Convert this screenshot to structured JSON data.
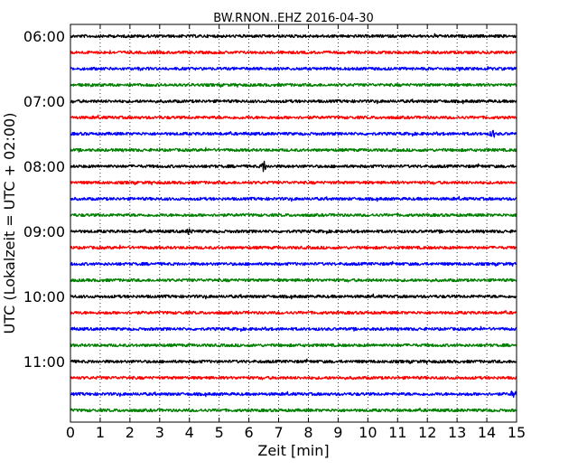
{
  "chart_data": {
    "type": "line",
    "title": "BW.RNON..EHZ 2016-04-30",
    "xlabel": "Zeit  [min]",
    "ylabel": "UTC (Lokalzeit = UTC + 02:00)",
    "xlim": [
      0,
      15
    ],
    "x_ticks": [
      "0",
      "1",
      "2",
      "3",
      "4",
      "5",
      "6",
      "7",
      "8",
      "9",
      "10",
      "11",
      "12",
      "13",
      "14",
      "15"
    ],
    "y_tick_labels": [
      "06:00",
      "07:00",
      "08:00",
      "09:00",
      "10:00",
      "11:00"
    ],
    "grid": "vertical dotted at each minute",
    "trace_interval_minutes": 15,
    "trace_start": "06:00",
    "trace_count": 24,
    "trace_colors": [
      "#000000",
      "#ff0000",
      "#0000ff",
      "#008000"
    ],
    "notable_events": [
      {
        "trace": "08:00",
        "minute": 6.5,
        "relative_amplitude": 6
      },
      {
        "trace": "07:30",
        "minute": 14.2,
        "relative_amplitude": 4
      },
      {
        "trace": "11:30",
        "minute": 14.9,
        "relative_amplitude": 4
      },
      {
        "trace": "09:00",
        "minute": 4.0,
        "relative_amplitude": 3
      }
    ]
  }
}
